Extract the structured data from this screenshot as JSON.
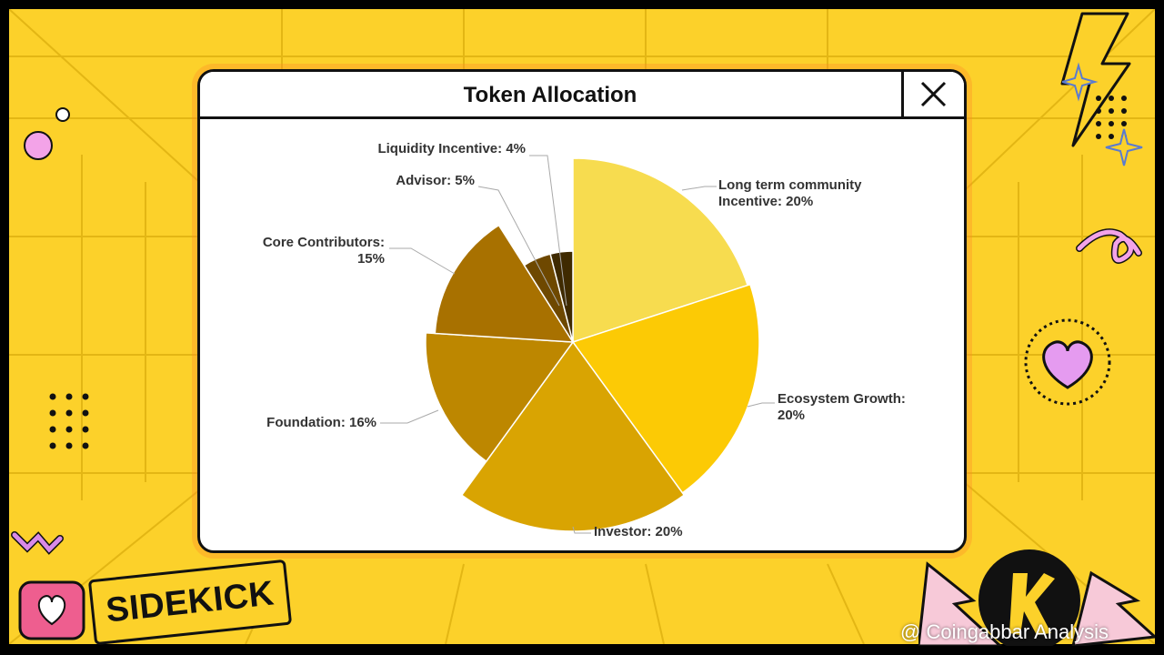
{
  "window": {
    "title": "Token Allocation"
  },
  "brand": {
    "name": "SIDEKICK"
  },
  "watermark": {
    "text": "@ Coingabbar Analysis"
  },
  "icons": [
    "close-icon",
    "heart-icon",
    "lightning-icon",
    "sparkle-icon",
    "brand-k-logo-icon"
  ],
  "colors": {
    "background": "#fcd12a",
    "card": "#ffffff",
    "border": "#111111"
  },
  "chart_data": {
    "type": "pie",
    "title": "Token Allocation",
    "slices": [
      {
        "label": "Long term community Incentive: 20%",
        "label_lines": [
          "Long term community",
          "Incentive: 20%"
        ],
        "value": 20,
        "color": "#f7dc4f"
      },
      {
        "label": "Ecosystem Growth: 20%",
        "label_lines": [
          "Ecosystem Growth:",
          "20%"
        ],
        "value": 20,
        "color": "#fcca05"
      },
      {
        "label": "Investor: 20%",
        "label_lines": [
          "Investor: 20%"
        ],
        "value": 20,
        "color": "#d9a402"
      },
      {
        "label": "Foundation: 16%",
        "label_lines": [
          "Foundation: 16%"
        ],
        "value": 16,
        "color": "#bd8700"
      },
      {
        "label": "Core Contributors: 15%",
        "label_lines": [
          "Core Contributors:",
          "15%"
        ],
        "value": 15,
        "color": "#a87100"
      },
      {
        "label": "Advisor: 5%",
        "label_lines": [
          "Advisor: 5%"
        ],
        "value": 5,
        "color": "#6e4800"
      },
      {
        "label": "Liquidity Incentive: 4%",
        "label_lines": [
          "Liquidity Incentive: 4%"
        ],
        "value": 4,
        "color": "#3f2a00"
      }
    ]
  }
}
